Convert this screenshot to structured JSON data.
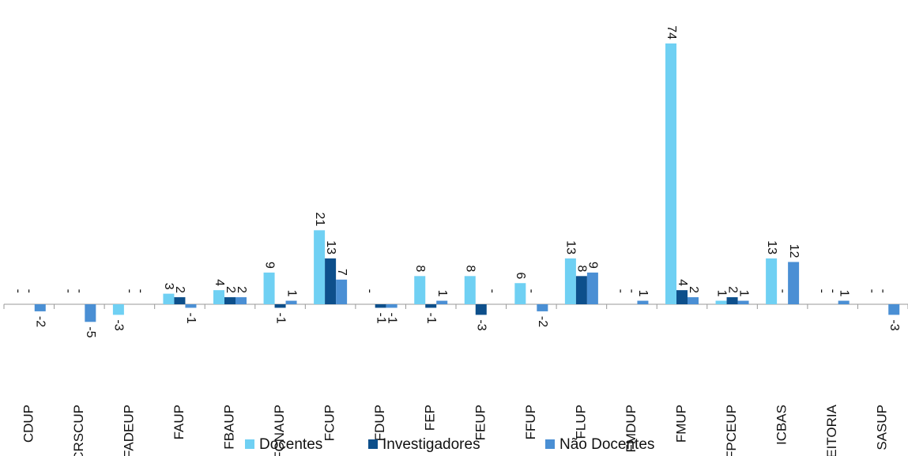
{
  "chart_data": {
    "type": "bar",
    "categories": [
      "CDUP",
      "CRSCUP",
      "FADEUP",
      "FAUP",
      "FBAUP",
      "FCNAUP",
      "FCUP",
      "FDUP",
      "FEP",
      "FEUP",
      "FFUP",
      "FLUP",
      "FMDUP",
      "FMUP",
      "FPCEUP",
      "ICBAS",
      "REITORIA",
      "SASUP"
    ],
    "series": [
      {
        "name": "Docentes",
        "color": "#6fd0f3",
        "values": [
          0,
          0,
          -3,
          3,
          4,
          9,
          21,
          0,
          8,
          8,
          6,
          13,
          0,
          74,
          1,
          13,
          0,
          0
        ],
        "value_labels": [
          "-",
          "-",
          "-3",
          "3",
          "4",
          "9",
          "21",
          "-",
          "8",
          "8",
          "6",
          "13",
          "-",
          "74",
          "1",
          "13",
          "-",
          "-"
        ]
      },
      {
        "name": "Investigadores",
        "color": "#0d4f8b",
        "values": [
          0,
          0,
          0,
          2,
          2,
          -1,
          13,
          -1,
          -1,
          -3,
          0,
          8,
          0,
          4,
          2,
          0,
          0,
          0
        ],
        "value_labels": [
          "-",
          "-",
          "-",
          "2",
          "2",
          "-1",
          "13",
          "-1",
          "-1",
          "-3",
          "-",
          "8",
          "-",
          "4",
          "2",
          "-",
          "-",
          "-"
        ]
      },
      {
        "name": "Não Docentes",
        "color": "#4a8fd4",
        "values": [
          -2,
          -5,
          0,
          -1,
          2,
          1,
          7,
          -1,
          1,
          0,
          -2,
          9,
          1,
          2,
          1,
          12,
          1,
          -3
        ],
        "value_labels": [
          "-2",
          "-5",
          "-",
          "-1",
          "2",
          "1",
          "7",
          "-1",
          "1",
          "-",
          "-2",
          "9",
          "1",
          "2",
          "1",
          "12",
          "1",
          "-3"
        ]
      }
    ],
    "legend": "bottom"
  }
}
